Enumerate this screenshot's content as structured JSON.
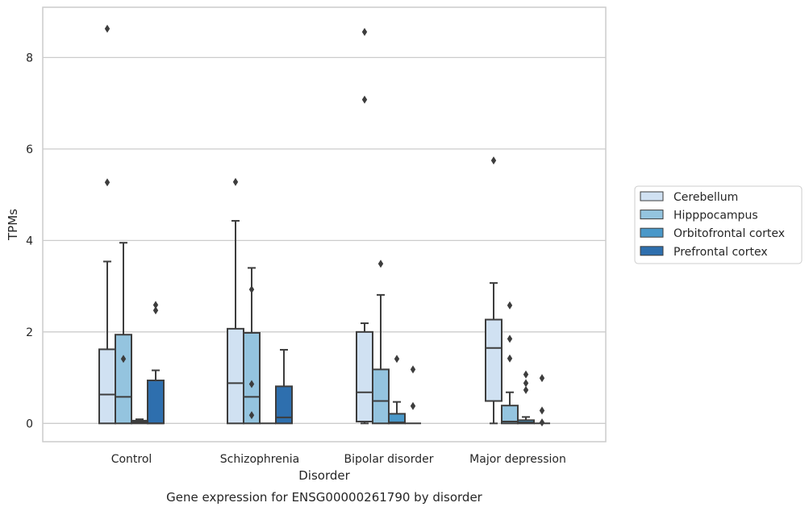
{
  "chart_data": {
    "type": "box",
    "title": "",
    "caption": "Gene expression for ENSG00000261790 by disorder",
    "xlabel": "Disorder",
    "ylabel": "TPMs",
    "ylim": [
      -0.4,
      9.1
    ],
    "yticks": [
      0,
      2,
      4,
      6,
      8
    ],
    "grid": "horizontal",
    "legend_position": "right",
    "categories": [
      "Control",
      "Schizophrenia",
      "Bipolar disorder",
      "Major depression"
    ],
    "series": [
      {
        "name": "Cerebellum",
        "color": "#d0e1f2",
        "boxes": [
          {
            "min": 0,
            "q1": 0,
            "median": 0.63,
            "q3": 1.62,
            "max": 3.54,
            "outliers": [
              5.27,
              8.63
            ]
          },
          {
            "min": 0,
            "q1": 0,
            "median": 0.88,
            "q3": 2.07,
            "max": 4.43,
            "outliers": [
              5.28
            ]
          },
          {
            "min": 0,
            "q1": 0.04,
            "median": 0.68,
            "q3": 2.0,
            "max": 2.19,
            "outliers": [
              7.08,
              8.56
            ]
          },
          {
            "min": 0,
            "q1": 0.49,
            "median": 1.65,
            "q3": 2.27,
            "max": 3.07,
            "outliers": [
              5.75
            ]
          }
        ]
      },
      {
        "name": "Hipppocampus",
        "color": "#94c4df",
        "boxes": [
          {
            "min": 0,
            "q1": 0,
            "median": 0.58,
            "q3": 1.94,
            "max": 3.95,
            "outliers": [
              1.41
            ]
          },
          {
            "min": 0,
            "q1": 0,
            "median": 0.58,
            "q3": 1.98,
            "max": 3.4,
            "outliers": [
              0.18,
              0.86,
              2.93
            ]
          },
          {
            "min": 0,
            "q1": 0,
            "median": 0.49,
            "q3": 1.18,
            "max": 2.81,
            "outliers": [
              3.49
            ]
          },
          {
            "min": 0,
            "q1": 0,
            "median": 0.04,
            "q3": 0.39,
            "max": 0.68,
            "outliers": [
              1.42,
              1.85,
              2.58
            ]
          }
        ]
      },
      {
        "name": "Orbitofrontal cortex",
        "color": "#4a98c9",
        "boxes": [
          {
            "min": 0,
            "q1": 0,
            "median": 0.03,
            "q3": 0.06,
            "max": 0.09,
            "outliers": []
          },
          {
            "min": 0,
            "q1": 0,
            "median": 0,
            "q3": 0,
            "max": 0,
            "outliers": []
          },
          {
            "min": 0,
            "q1": 0,
            "median": 0.02,
            "q3": 0.21,
            "max": 0.47,
            "outliers": [
              1.41
            ]
          },
          {
            "min": 0,
            "q1": 0,
            "median": 0.02,
            "q3": 0.07,
            "max": 0.14,
            "outliers": [
              0.73,
              0.88,
              1.07
            ]
          }
        ]
      },
      {
        "name": "Prefrontal cortex",
        "color": "#2e6fae",
        "boxes": [
          {
            "min": 0,
            "q1": 0,
            "median": 0,
            "q3": 0.94,
            "max": 1.16,
            "outliers": [
              2.47,
              2.59
            ]
          },
          {
            "min": 0,
            "q1": 0,
            "median": 0.13,
            "q3": 0.81,
            "max": 1.61,
            "outliers": []
          },
          {
            "min": 0,
            "q1": 0,
            "median": 0,
            "q3": 0,
            "max": 0,
            "outliers": [
              0.38,
              1.18
            ]
          },
          {
            "min": 0,
            "q1": 0,
            "median": 0,
            "q3": 0,
            "max": 0,
            "outliers": [
              0.02,
              0.28,
              0.99
            ]
          }
        ]
      }
    ]
  }
}
